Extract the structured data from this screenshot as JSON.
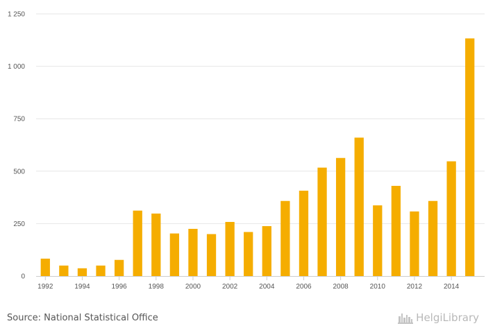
{
  "chart_data": {
    "type": "bar",
    "title": "",
    "xlabel": "",
    "ylabel": "",
    "categories": [
      "1992",
      "1993",
      "1994",
      "1995",
      "1996",
      "1997",
      "1998",
      "1999",
      "2000",
      "2001",
      "2002",
      "2003",
      "2004",
      "2005",
      "2006",
      "2007",
      "2008",
      "2009",
      "2010",
      "2011",
      "2012",
      "2013",
      "2014",
      "2015"
    ],
    "x_tick_labels": [
      "1992",
      "1994",
      "1996",
      "1998",
      "2000",
      "2002",
      "2004",
      "2006",
      "2008",
      "2010",
      "2012",
      "2014"
    ],
    "values": [
      83,
      50,
      37,
      50,
      77,
      312,
      298,
      203,
      225,
      200,
      258,
      210,
      238,
      358,
      407,
      517,
      563,
      660,
      337,
      430,
      308,
      358,
      547,
      1133
    ],
    "ylim": [
      0,
      1250
    ],
    "y_ticks": [
      0,
      250,
      500,
      750,
      1000,
      1250
    ],
    "y_tick_labels": [
      "0",
      "250",
      "500",
      "750",
      "1 000",
      "1 250"
    ],
    "grid": true,
    "bar_color": "#f5ad00"
  },
  "footer": {
    "source": "Source: National Statistical Office",
    "brand": "HelgiLibrary",
    "brand_icon": "castle-icon"
  }
}
